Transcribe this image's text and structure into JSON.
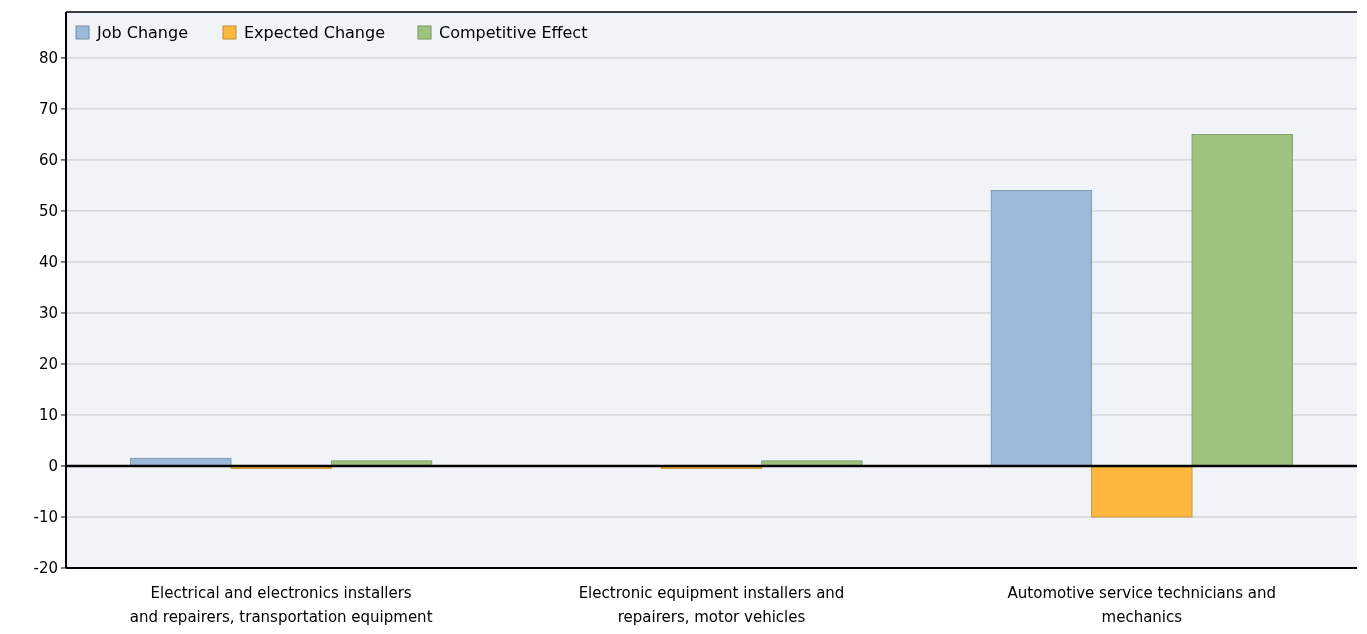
{
  "chart_data": {
    "type": "bar",
    "categories": [
      "Electrical and electronics installers and repairers, transportation equipment",
      "Electronic equipment installers and repairers, motor vehicles",
      "Automotive service technicians and mechanics"
    ],
    "series": [
      {
        "name": "Job Change",
        "color": "#9bbad9",
        "values": [
          1.5,
          0,
          54
        ]
      },
      {
        "name": "Expected Change",
        "color": "#fdb73d",
        "values": [
          -0.5,
          -0.5,
          -10
        ]
      },
      {
        "name": "Competitive Effect",
        "color": "#9dc37f",
        "values": [
          1,
          1,
          65
        ]
      }
    ],
    "ylim": [
      -20,
      89
    ],
    "yticks": [
      -20,
      -10,
      0,
      10,
      20,
      30,
      40,
      50,
      60,
      70,
      80
    ],
    "grid": "y",
    "legend": "top left"
  }
}
